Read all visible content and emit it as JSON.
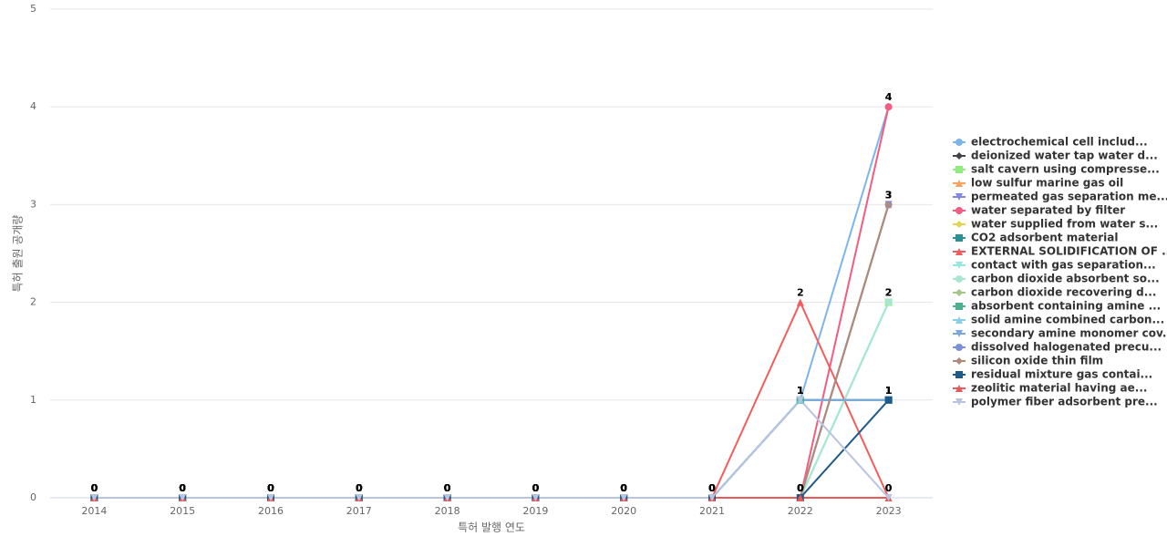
{
  "chart_data": {
    "type": "line",
    "x_label": "특허 발행 연도",
    "y_label": "특허 출원 공개량",
    "categories": [
      "2014",
      "2015",
      "2016",
      "2017",
      "2018",
      "2019",
      "2020",
      "2021",
      "2022",
      "2023"
    ],
    "ylim": [
      0,
      5
    ],
    "yticks": [
      0,
      1,
      2,
      3,
      4,
      5
    ],
    "grid": true,
    "legend": "right",
    "series": [
      {
        "name": "electrochemical cell includ...",
        "color": "#7cb5ec",
        "marker": "circle",
        "values": [
          0,
          0,
          0,
          0,
          0,
          0,
          0,
          0,
          1,
          4
        ]
      },
      {
        "name": "deionized water tap water d...",
        "color": "#434348",
        "marker": "diamond",
        "values": [
          0,
          0,
          0,
          0,
          0,
          0,
          0,
          0,
          0,
          3
        ]
      },
      {
        "name": "salt cavern using compresse...",
        "color": "#90ed7d",
        "marker": "square",
        "values": [
          0,
          0,
          0,
          0,
          0,
          0,
          0,
          0,
          0,
          2
        ]
      },
      {
        "name": "low sulfur marine gas oil",
        "color": "#f7a35c",
        "marker": "triangle",
        "values": [
          0,
          0,
          0,
          0,
          0,
          0,
          0,
          0,
          0,
          3
        ]
      },
      {
        "name": "permeated gas separation me...",
        "color": "#8085e9",
        "marker": "triangle-down",
        "values": [
          0,
          0,
          0,
          0,
          0,
          0,
          0,
          0,
          0,
          3
        ]
      },
      {
        "name": "water separated by filter",
        "color": "#f15c80",
        "marker": "circle",
        "values": [
          0,
          0,
          0,
          0,
          0,
          0,
          0,
          0,
          0,
          4
        ]
      },
      {
        "name": "water supplied from water s...",
        "color": "#e4d354",
        "marker": "diamond",
        "values": [
          0,
          0,
          0,
          0,
          0,
          0,
          0,
          0,
          0,
          3
        ]
      },
      {
        "name": "CO2 adsorbent material",
        "color": "#2b908f",
        "marker": "square",
        "values": [
          0,
          0,
          0,
          0,
          0,
          0,
          0,
          0,
          1,
          1
        ]
      },
      {
        "name": "EXTERNAL SOLIDIFICATION OF ...",
        "color": "#f45b5b",
        "marker": "triangle",
        "values": [
          0,
          0,
          0,
          0,
          0,
          0,
          0,
          0,
          2,
          0
        ]
      },
      {
        "name": "contact with gas separation...",
        "color": "#91e8e1",
        "marker": "triangle-down",
        "values": [
          0,
          0,
          0,
          0,
          0,
          0,
          0,
          0,
          0,
          2
        ]
      },
      {
        "name": "carbon dioxide absorbent so...",
        "color": "#a8e6cf",
        "marker": "circle",
        "values": [
          0,
          0,
          0,
          0,
          0,
          0,
          0,
          0,
          0,
          2
        ]
      },
      {
        "name": "carbon dioxide recovering d...",
        "color": "#a3c586",
        "marker": "diamond",
        "values": [
          0,
          0,
          0,
          0,
          0,
          0,
          0,
          0,
          1,
          1
        ]
      },
      {
        "name": "absorbent containing amine ...",
        "color": "#4caf8e",
        "marker": "square",
        "values": [
          0,
          0,
          0,
          0,
          0,
          0,
          0,
          0,
          1,
          1
        ]
      },
      {
        "name": "solid amine combined carbon...",
        "color": "#87ceeb",
        "marker": "triangle",
        "values": [
          0,
          0,
          0,
          0,
          0,
          0,
          0,
          0,
          1,
          1
        ]
      },
      {
        "name": "secondary amine monomer cov...",
        "color": "#7aa6dc",
        "marker": "triangle-down",
        "values": [
          0,
          0,
          0,
          0,
          0,
          0,
          0,
          0,
          1,
          1
        ]
      },
      {
        "name": "dissolved halogenated precu...",
        "color": "#7b8fd9",
        "marker": "circle",
        "values": [
          0,
          0,
          0,
          0,
          0,
          0,
          0,
          0,
          0,
          3
        ]
      },
      {
        "name": "silicon oxide thin film",
        "color": "#b08a7a",
        "marker": "diamond",
        "values": [
          0,
          0,
          0,
          0,
          0,
          0,
          0,
          0,
          0,
          3
        ]
      },
      {
        "name": "residual mixture gas contai...",
        "color": "#1f5a8a",
        "marker": "square",
        "values": [
          0,
          0,
          0,
          0,
          0,
          0,
          0,
          0,
          0,
          1
        ]
      },
      {
        "name": "zeolitic material having ae...",
        "color": "#e85a5a",
        "marker": "triangle",
        "values": [
          0,
          0,
          0,
          0,
          0,
          0,
          0,
          0,
          0,
          0
        ]
      },
      {
        "name": "polymer fiber adsorbent pre...",
        "color": "#b8c4e0",
        "marker": "triangle-down",
        "values": [
          0,
          0,
          0,
          0,
          0,
          0,
          0,
          0,
          1,
          0
        ]
      }
    ]
  }
}
